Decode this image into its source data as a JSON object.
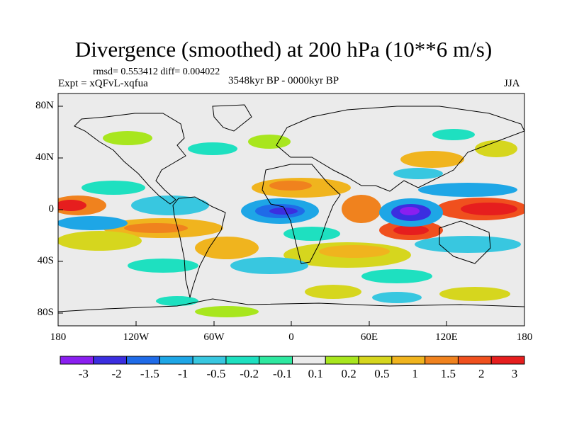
{
  "title": "Divergence (smoothed) at 200 hPa (10**6 m/s)",
  "stats": "rmsd= 0.553412  diff= 0.004022",
  "experiment": "Expt = xQFvL-xqfua",
  "period": "3548kyr BP - 0000kyr BP",
  "season": "JJA",
  "y_axis_labels": [
    "80N",
    "40N",
    "0",
    "40S",
    "80S"
  ],
  "x_axis_labels": [
    "180",
    "120W",
    "60W",
    "0",
    "60E",
    "120E",
    "180"
  ],
  "colorbar": {
    "labels": [
      "-3",
      "-2",
      "-1.5",
      "-1",
      "-0.5",
      "-0.2",
      "-0.1",
      "0.1",
      "0.2",
      "0.5",
      "1",
      "1.5",
      "2",
      "3"
    ],
    "colors": [
      "#8a1ff0",
      "#3b2ee0",
      "#1f6be8",
      "#1ea6e6",
      "#38c7e0",
      "#1ee0c0",
      "#2ee8a0",
      "#ebebeb",
      "#a8e61e",
      "#d6d61e",
      "#f0b41e",
      "#f0821e",
      "#f0501e",
      "#e61e1e"
    ]
  },
  "map_background": "#ebebeb"
}
